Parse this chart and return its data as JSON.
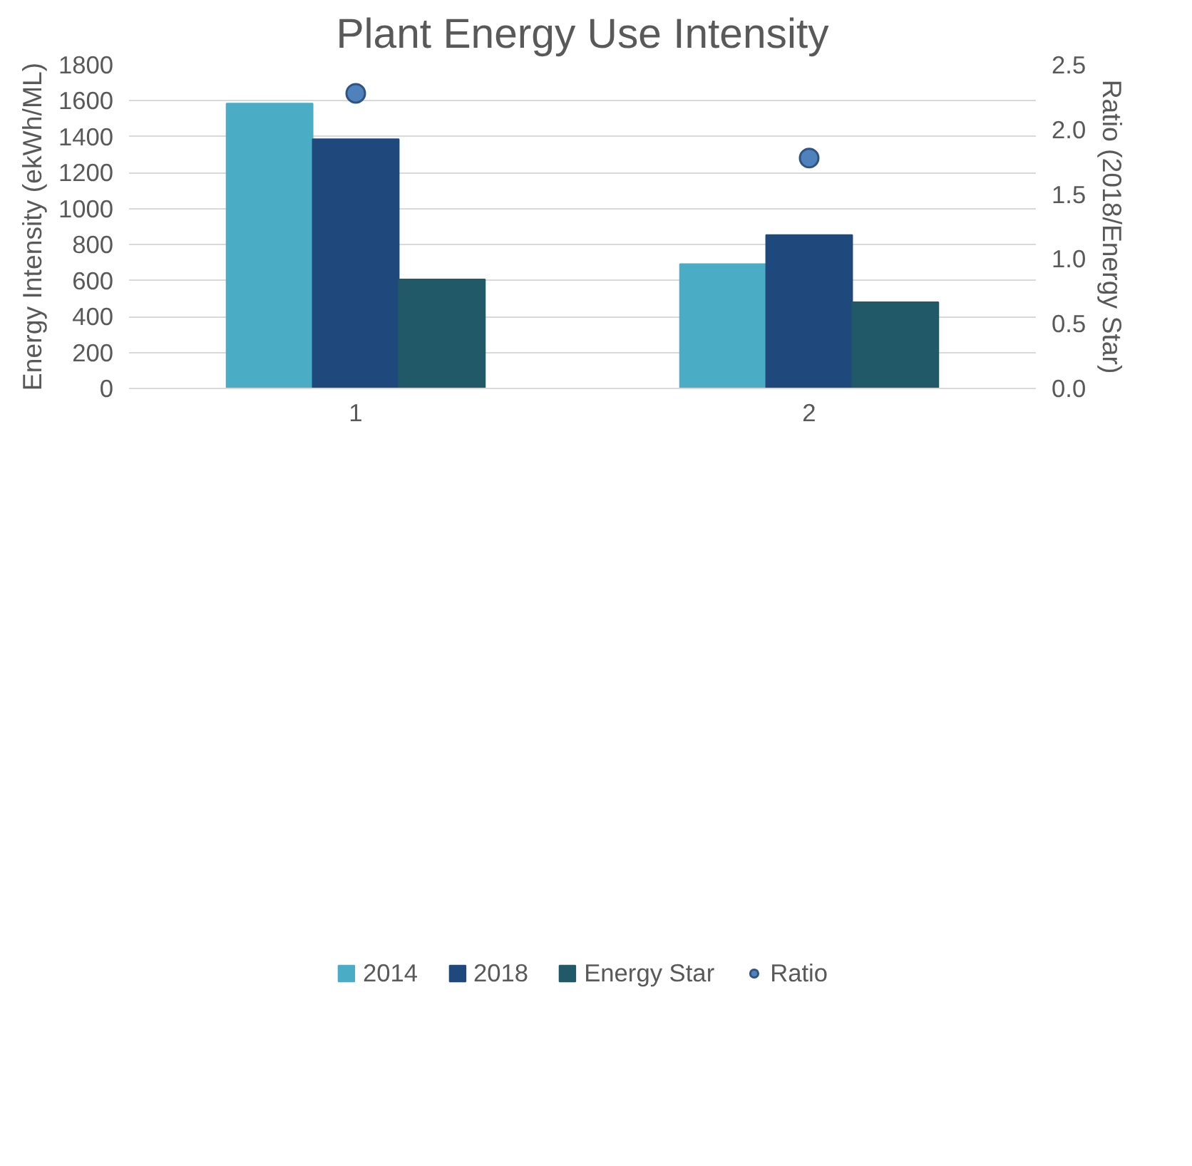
{
  "chart_data": {
    "type": "bar",
    "title": "Plant Energy Use Intensity",
    "ylabel": "Energy Intensity (ekWh/ML)",
    "y2label": "Ratio (2018/Energy Star)",
    "categories": [
      "1",
      "2"
    ],
    "series": [
      {
        "name": "2014",
        "color": "#4bacc6",
        "values": [
          1585,
          692
        ]
      },
      {
        "name": "2018",
        "color": "#1f497d",
        "values": [
          1387,
          853
        ]
      },
      {
        "name": "Energy Star",
        "color": "#215968",
        "values": [
          607,
          480
        ]
      },
      {
        "name": "Ratio",
        "type": "scatter",
        "axis": "y2",
        "color": "#4f81bd",
        "x": [
          "1",
          "2"
        ],
        "values": [
          2.28,
          1.78
        ]
      }
    ],
    "ylim": [
      0,
      1800
    ],
    "yticks": [
      0,
      200,
      400,
      600,
      800,
      1000,
      1200,
      1400,
      1600,
      1800
    ],
    "y2lim": [
      0,
      2.5
    ],
    "y2ticks": [
      {
        "value": 0,
        "label": "0.0"
      },
      {
        "value": 0.5,
        "label": "0.5"
      },
      {
        "value": 1,
        "label": "1.0"
      },
      {
        "value": 1.5,
        "label": "1.5"
      },
      {
        "value": 2,
        "label": "2.0"
      },
      {
        "value": 2.5,
        "label": "2.5"
      }
    ],
    "grid": "y",
    "legend": "bottom",
    "marker": "circle"
  }
}
